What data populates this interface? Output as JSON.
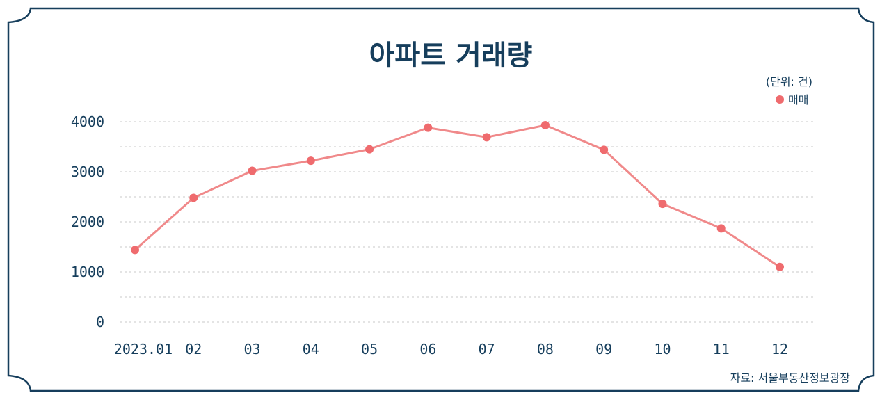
{
  "colors": {
    "frame": "#163e5c",
    "text": "#163e5c",
    "series": "#f0898a",
    "marker": "#ef6b6e",
    "grid": "#c9c9c9"
  },
  "chart_data": {
    "type": "line",
    "title": "아파트 거래량",
    "unit_label": "(단위: 건)",
    "categories": [
      "2023.01",
      "02",
      "03",
      "04",
      "05",
      "06",
      "07",
      "08",
      "09",
      "10",
      "11",
      "12"
    ],
    "series": [
      {
        "name": "매매",
        "values": [
          1440,
          2480,
          3020,
          3220,
          3450,
          3880,
          3690,
          3930,
          3440,
          2360,
          1870,
          1100
        ]
      }
    ],
    "yticks": [
      "4000",
      "3000",
      "2000",
      "1000",
      "0"
    ],
    "ylim": [
      0,
      4000
    ],
    "grid": true,
    "legend_position": "top-right",
    "source": "자료: 서울부동산정보광장"
  }
}
